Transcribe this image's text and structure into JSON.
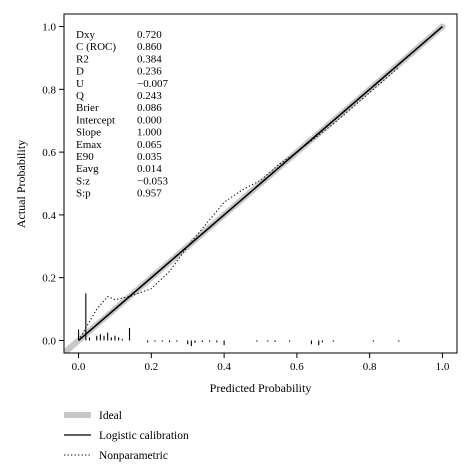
{
  "chart_data": {
    "type": "line",
    "xlabel": "Predicted Probability",
    "ylabel": "Actual Probability",
    "xlim": [
      -0.04,
      1.04
    ],
    "ylim": [
      -0.04,
      1.04
    ],
    "x_ticks": [
      "0.0",
      "0.2",
      "0.4",
      "0.6",
      "0.8",
      "1.0"
    ],
    "y_ticks": [
      "0.0",
      "0.2",
      "0.4",
      "0.6",
      "0.8",
      "1.0"
    ],
    "grid": false,
    "stats": [
      {
        "label": "Dxy",
        "value": "0.720"
      },
      {
        "label": "C (ROC)",
        "value": "0.860"
      },
      {
        "label": "R2",
        "value": "0.384"
      },
      {
        "label": "D",
        "value": "0.236"
      },
      {
        "label": "U",
        "value": "−0.007"
      },
      {
        "label": "Q",
        "value": "0.243"
      },
      {
        "label": "Brier",
        "value": "0.086"
      },
      {
        "label": "Intercept",
        "value": "0.000"
      },
      {
        "label": "Slope",
        "value": "1.000"
      },
      {
        "label": "Emax",
        "value": "0.065"
      },
      {
        "label": "E90",
        "value": "0.035"
      },
      {
        "label": "Eavg",
        "value": "0.014"
      },
      {
        "label": "S:z",
        "value": "−0.053"
      },
      {
        "label": "S:p",
        "value": "0.957"
      }
    ],
    "series": [
      {
        "name": "Ideal",
        "style": "thick-gray",
        "color": "#c8c8c8",
        "x": [
          -0.04,
          1.0
        ],
        "y": [
          -0.04,
          1.0
        ]
      },
      {
        "name": "Logistic calibration",
        "style": "solid",
        "color": "#000000",
        "x": [
          0.0,
          1.0
        ],
        "y": [
          0.0,
          1.0
        ]
      },
      {
        "name": "Nonparametric",
        "style": "dotted",
        "color": "#000000",
        "x": [
          0.0,
          0.02,
          0.05,
          0.08,
          0.1,
          0.14,
          0.2,
          0.25,
          0.3,
          0.35,
          0.4,
          0.45,
          0.5,
          0.55,
          0.6,
          0.7,
          0.8,
          0.88
        ],
        "y": [
          0.0,
          0.04,
          0.1,
          0.14,
          0.13,
          0.14,
          0.165,
          0.22,
          0.3,
          0.37,
          0.44,
          0.48,
          0.51,
          0.56,
          0.6,
          0.69,
          0.79,
          0.87
        ]
      }
    ],
    "rug_events_up": {
      "x": [
        0.0,
        0.02,
        0.03,
        0.05,
        0.06,
        0.07,
        0.08,
        0.09,
        0.1,
        0.11,
        0.12,
        0.14
      ],
      "y": [
        0.035,
        0.15,
        0.01,
        0.015,
        0.02,
        0.015,
        0.025,
        0.01,
        0.015,
        0.01,
        0.005,
        0.04
      ]
    },
    "rug_nonevents_down": {
      "x": [
        0.19,
        0.21,
        0.23,
        0.25,
        0.27,
        0.3,
        0.31,
        0.32,
        0.34,
        0.36,
        0.38,
        0.4,
        0.49,
        0.52,
        0.54,
        0.58,
        0.64,
        0.66,
        0.67,
        0.7,
        0.81,
        0.88
      ],
      "y": [
        0.006,
        0.004,
        0.004,
        0.005,
        0.004,
        0.012,
        0.018,
        0.008,
        0.005,
        0.004,
        0.006,
        0.015,
        0.004,
        0.004,
        0.005,
        0.004,
        0.012,
        0.015,
        0.006,
        0.004,
        0.004,
        0.004
      ]
    },
    "legend": {
      "position": "bottom-left",
      "entries": [
        "Ideal",
        "Logistic calibration",
        "Nonparametric"
      ]
    }
  }
}
